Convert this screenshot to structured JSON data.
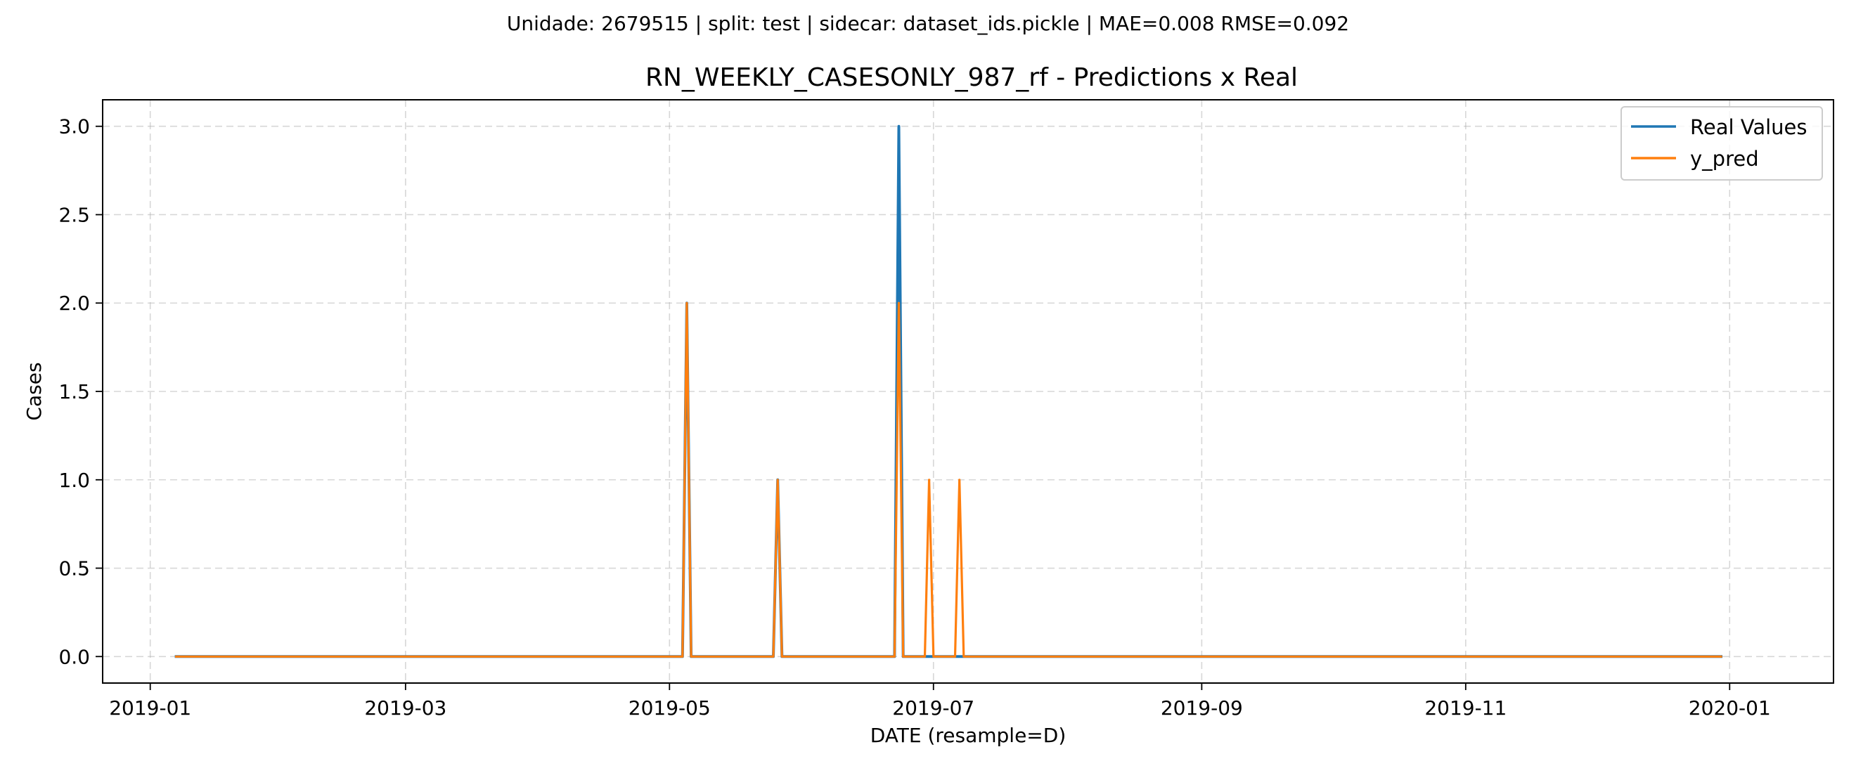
{
  "suptitle": "Unidade: 2679515 | split: test | sidecar: dataset_ids.pickle | MAE=0.008  RMSE=0.092",
  "chart_data": {
    "type": "line",
    "title": "RN_WEEKLY_CASESONLY_987_rf - Predictions x Real",
    "xlabel": "DATE (resample=D)",
    "ylabel": "Cases",
    "xlim": [
      "2018-12-21",
      "2020-01-25"
    ],
    "ylim": [
      -0.15,
      3.15
    ],
    "x_ticks": [
      "2019-01",
      "2019-03",
      "2019-05",
      "2019-07",
      "2019-09",
      "2019-11",
      "2020-01"
    ],
    "y_ticks": [
      "0.0",
      "0.5",
      "1.0",
      "1.5",
      "2.0",
      "2.5",
      "3.0"
    ],
    "grid": true,
    "legend_position": "top-right",
    "series": [
      {
        "name": "Real Values",
        "color": "#1f77b4",
        "points": [
          [
            "2019-01-07",
            0
          ],
          [
            "2019-05-04",
            0
          ],
          [
            "2019-05-05",
            2
          ],
          [
            "2019-05-06",
            0
          ],
          [
            "2019-05-25",
            0
          ],
          [
            "2019-05-26",
            1
          ],
          [
            "2019-05-27",
            0
          ],
          [
            "2019-06-22",
            0
          ],
          [
            "2019-06-23",
            3
          ],
          [
            "2019-06-24",
            0
          ],
          [
            "2019-12-30",
            0
          ]
        ]
      },
      {
        "name": "y_pred",
        "color": "#ff7f0e",
        "points": [
          [
            "2019-01-07",
            0
          ],
          [
            "2019-05-04",
            0
          ],
          [
            "2019-05-05",
            2
          ],
          [
            "2019-05-06",
            0
          ],
          [
            "2019-05-25",
            0
          ],
          [
            "2019-05-26",
            1
          ],
          [
            "2019-05-27",
            0
          ],
          [
            "2019-06-22",
            0
          ],
          [
            "2019-06-23",
            2
          ],
          [
            "2019-06-24",
            0
          ],
          [
            "2019-06-29",
            0
          ],
          [
            "2019-06-30",
            1
          ],
          [
            "2019-07-01",
            0
          ],
          [
            "2019-07-06",
            0
          ],
          [
            "2019-07-07",
            1
          ],
          [
            "2019-07-08",
            0
          ],
          [
            "2019-12-30",
            0
          ]
        ]
      }
    ]
  }
}
